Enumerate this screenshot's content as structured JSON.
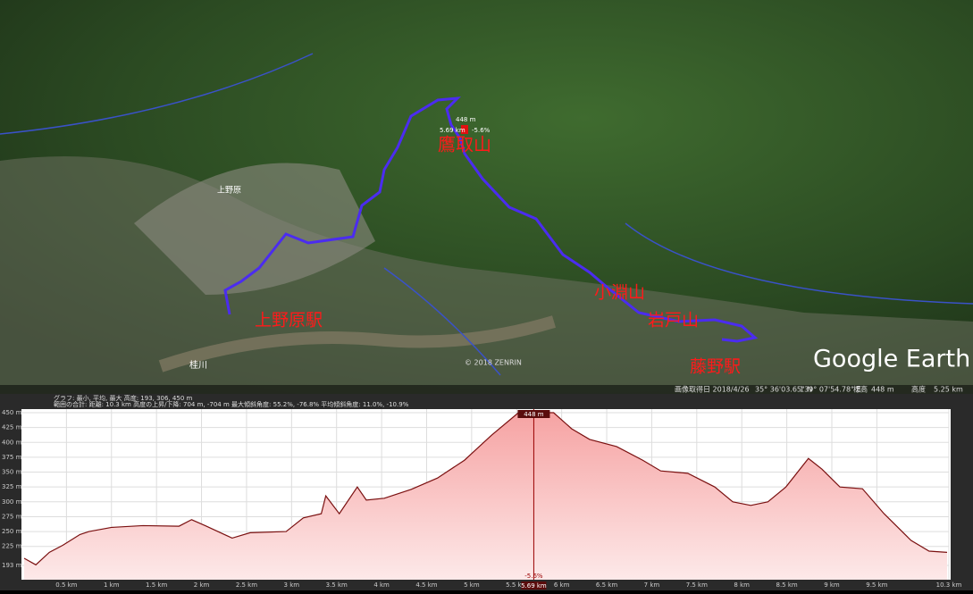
{
  "map": {
    "labels": [
      "鷹取山",
      "小淵山",
      "岩戸山",
      "上野原駅",
      "藤野駅"
    ],
    "places": [
      "桂川",
      "上野原"
    ],
    "marker": {
      "elevation": "448 m",
      "distance": "5.69 km",
      "slope": "-5.6%"
    },
    "copyright": "© 2018 ZENRIN",
    "logo": "Google Earth",
    "status": [
      "画像取得日 2018/4/26",
      "35° 36'03.65\" N",
      "139° 07'54.78\" E",
      "標高",
      "448 m",
      "高度",
      "5.25 km"
    ]
  },
  "graph_info": [
    "グラフ: 最小, 平均, 最大 高度: 193, 306, 450 m",
    "範囲の合計: 距離: 10.3 km 高度の上昇/下降: 704 m, -704 m 最大傾斜角度: 55.2%, -76.8% 平均傾斜角度: 11.0%, -10.9%"
  ],
  "chart_data": {
    "type": "area",
    "x": [
      0.03,
      0.16,
      0.31,
      0.46,
      0.65,
      0.75,
      1.0,
      1.35,
      1.75,
      1.89,
      2.04,
      2.34,
      2.54,
      2.94,
      3.13,
      3.33,
      3.38,
      3.53,
      3.73,
      3.83,
      4.03,
      4.33,
      4.62,
      4.92,
      5.22,
      5.52,
      5.91,
      6.11,
      6.31,
      6.61,
      6.9,
      7.1,
      7.4,
      7.7,
      7.9,
      8.1,
      8.29,
      8.49,
      8.74,
      8.89,
      9.09,
      9.34,
      9.58,
      9.88,
      10.08,
      10.28
    ],
    "values": [
      205,
      194,
      215,
      227,
      245,
      250,
      257,
      260,
      259,
      270,
      260,
      239,
      248,
      250,
      273,
      280,
      310,
      280,
      325,
      303,
      306,
      321,
      340,
      370,
      412,
      450,
      450,
      423,
      405,
      393,
      370,
      352,
      348,
      325,
      300,
      294,
      300,
      325,
      373,
      355,
      325,
      322,
      280,
      235,
      217,
      215
    ],
    "color": "#f2a0a0",
    "xlim": [
      0,
      10.3
    ],
    "ylim": [
      193,
      450
    ],
    "xticks": [
      {
        "value": 0.5,
        "label": "0.5 km"
      },
      {
        "value": 1,
        "label": "1 km"
      },
      {
        "value": 1.5,
        "label": "1.5 km"
      },
      {
        "value": 2,
        "label": "2 km"
      },
      {
        "value": 2.5,
        "label": "2.5 km"
      },
      {
        "value": 3,
        "label": "3 km"
      },
      {
        "value": 3.5,
        "label": "3.5 km"
      },
      {
        "value": 4,
        "label": "4 km"
      },
      {
        "value": 4.5,
        "label": "4.5 km"
      },
      {
        "value": 5,
        "label": "5 km"
      },
      {
        "value": 5.5,
        "label": "5.5 km"
      },
      {
        "value": 6,
        "label": "6 km"
      },
      {
        "value": 6.5,
        "label": "6.5 km"
      },
      {
        "value": 7,
        "label": "7 km"
      },
      {
        "value": 7.5,
        "label": "7.5 km"
      },
      {
        "value": 8,
        "label": "8 km"
      },
      {
        "value": 8.5,
        "label": "8.5 km"
      },
      {
        "value": 9,
        "label": "9 km"
      },
      {
        "value": 9.5,
        "label": "9.5 km"
      },
      {
        "value": 10.3,
        "label": "10.3 km"
      }
    ],
    "yticks": [
      {
        "value": 193,
        "label": "193 m"
      },
      {
        "value": 225,
        "label": "225 m"
      },
      {
        "value": 250,
        "label": "250 m"
      },
      {
        "value": 275,
        "label": "275 m"
      },
      {
        "value": 300,
        "label": "300 m"
      },
      {
        "value": 325,
        "label": "325 m"
      },
      {
        "value": 350,
        "label": "350 m"
      },
      {
        "value": 375,
        "label": "375 m"
      },
      {
        "value": 400,
        "label": "400 m"
      },
      {
        "value": 425,
        "label": "425 m"
      },
      {
        "value": 450,
        "label": "450 m"
      }
    ],
    "grid": true
  }
}
